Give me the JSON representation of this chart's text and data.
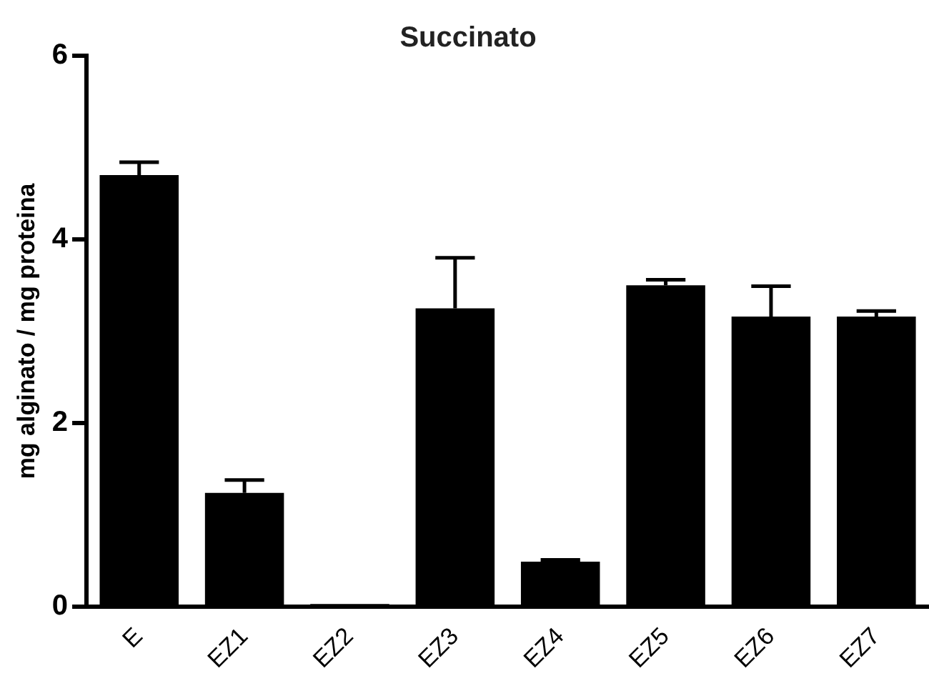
{
  "chart_data": {
    "type": "bar",
    "title": "Succinato",
    "ylabel": "mg alginato / mg proteina",
    "categories": [
      "E",
      "EZ1",
      "EZ2",
      "EZ3",
      "EZ4",
      "EZ5",
      "EZ6",
      "EZ7"
    ],
    "values": [
      4.7,
      1.24,
      0.03,
      3.25,
      0.49,
      3.5,
      3.16,
      3.16
    ],
    "errors": [
      [
        4.7,
        4.84
      ],
      [
        1.24,
        1.38
      ],
      null,
      [
        3.25,
        3.8
      ],
      [
        0.49,
        0.51
      ],
      [
        3.5,
        3.56
      ],
      [
        3.16,
        3.49
      ],
      [
        3.16,
        3.22
      ]
    ],
    "color": "#000000",
    "ylim": [
      0,
      6
    ],
    "yticks": [
      0,
      2,
      4,
      6
    ],
    "grid": false,
    "legend": false
  }
}
